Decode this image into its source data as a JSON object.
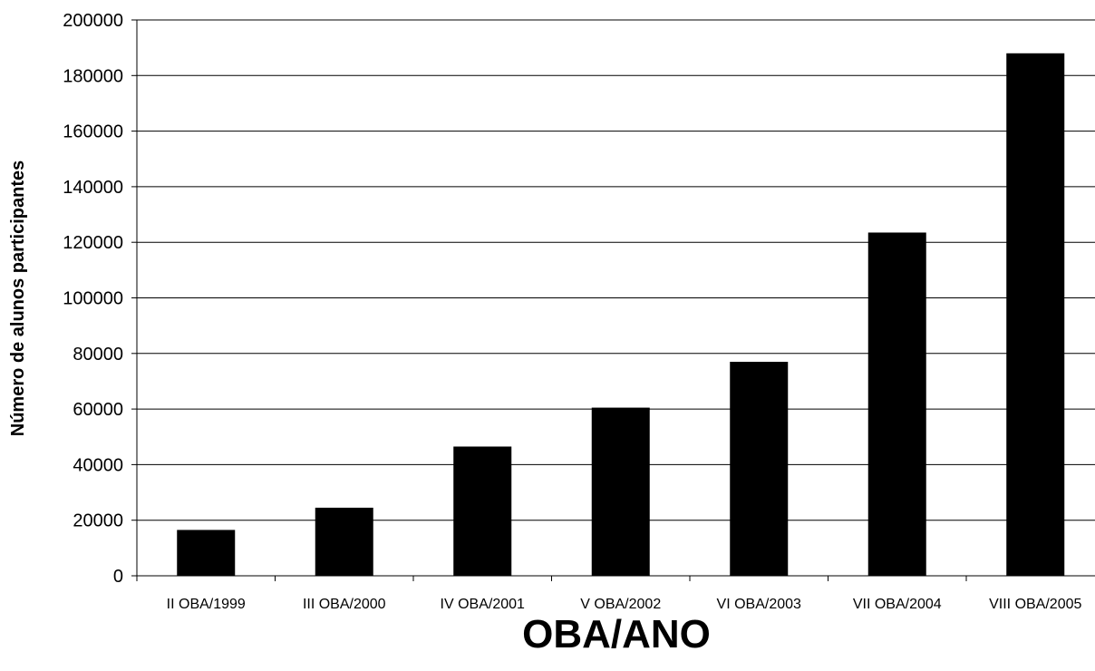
{
  "chart_data": {
    "type": "bar",
    "categories": [
      "II OBA/1999",
      "III OBA/2000",
      "IV OBA/2001",
      "V OBA/2002",
      "VI OBA/2003",
      "VII OBA/2004",
      "VIII OBA/2005"
    ],
    "values": [
      16500,
      24500,
      46500,
      60500,
      77000,
      123500,
      188000
    ],
    "xlabel": "OBA/ANO",
    "ylabel": "Número de alunos participantes",
    "ylim": [
      0,
      200000
    ],
    "yticks": [
      0,
      20000,
      40000,
      60000,
      80000,
      100000,
      120000,
      140000,
      160000,
      180000,
      200000
    ],
    "grid": true,
    "bar_color": "#000000"
  }
}
